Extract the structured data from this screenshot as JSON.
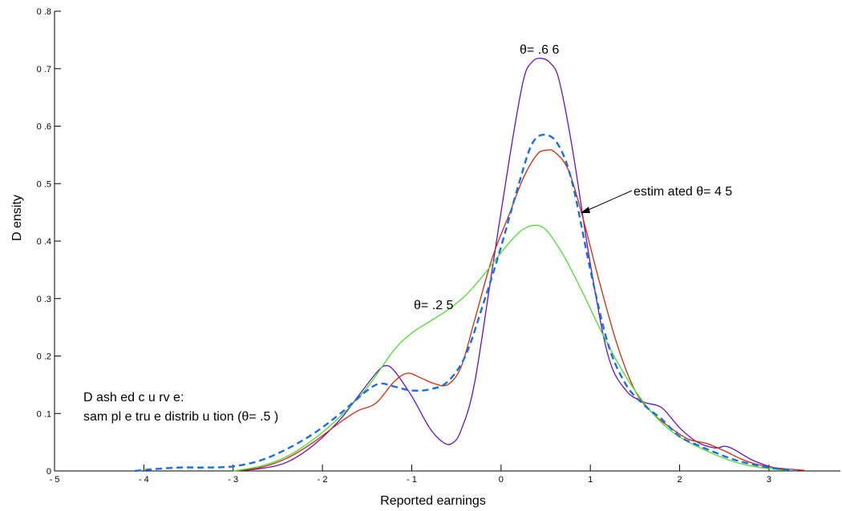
{
  "chart_data": {
    "type": "line",
    "title": "",
    "xlabel": "Reported earnings",
    "ylabel": "D ensity",
    "xlim": [
      -5,
      3.8
    ],
    "ylim": [
      0,
      0.8
    ],
    "grid": false,
    "x_ticks": [
      -5,
      -4,
      -3,
      -2,
      -1,
      0,
      1,
      2,
      3
    ],
    "x_tick_labels": [
      "- 5",
      "- 4",
      "- 3",
      "- 2",
      "- 1",
      "0",
      "1",
      "2",
      "3"
    ],
    "y_ticks": [
      0,
      0.1,
      0.2,
      0.3,
      0.4,
      0.5,
      0.6,
      0.7,
      0.8
    ],
    "y_tick_labels": [
      "0",
      "0 .1",
      "0 .2",
      "0 .3",
      "0 .4",
      "0 .5",
      "0 .6",
      "0 .7",
      "0 .8"
    ],
    "series": [
      {
        "color": "#1a6fe0",
        "dash": true,
        "x": [
          -4.1,
          -3.9,
          -3.6,
          -3.3,
          -3.0,
          -2.7,
          -2.4,
          -2.1,
          -1.8,
          -1.5,
          -1.35,
          -1.2,
          -1.0,
          -0.8,
          -0.6,
          -0.4,
          -0.2,
          0.0,
          0.2,
          0.35,
          0.5,
          0.65,
          0.8,
          1.0,
          1.2,
          1.4,
          1.6,
          1.8,
          2.0,
          2.2,
          2.4,
          2.6,
          2.8,
          3.0,
          3.3
        ],
        "y": [
          0.0,
          0.003,
          0.006,
          0.006,
          0.008,
          0.018,
          0.038,
          0.065,
          0.1,
          0.14,
          0.152,
          0.147,
          0.14,
          0.142,
          0.155,
          0.2,
          0.29,
          0.39,
          0.5,
          0.57,
          0.585,
          0.565,
          0.5,
          0.35,
          0.22,
          0.15,
          0.115,
          0.09,
          0.06,
          0.045,
          0.032,
          0.02,
          0.012,
          0.006,
          0.001
        ]
      },
      {
        "color": "#6a0dc8",
        "dash": false,
        "x": [
          -3.0,
          -2.7,
          -2.4,
          -2.1,
          -1.8,
          -1.6,
          -1.4,
          -1.3,
          -1.2,
          -1.0,
          -0.8,
          -0.65,
          -0.55,
          -0.45,
          -0.3,
          -0.1,
          0.1,
          0.25,
          0.35,
          0.45,
          0.55,
          0.65,
          0.8,
          1.0,
          1.2,
          1.4,
          1.6,
          1.8,
          2.0,
          2.2,
          2.4,
          2.5,
          2.6,
          2.8,
          3.0,
          3.2
        ],
        "y": [
          0.0,
          0.004,
          0.015,
          0.045,
          0.09,
          0.13,
          0.17,
          0.183,
          0.175,
          0.13,
          0.075,
          0.05,
          0.048,
          0.07,
          0.15,
          0.35,
          0.55,
          0.68,
          0.712,
          0.718,
          0.71,
          0.68,
          0.56,
          0.36,
          0.2,
          0.14,
          0.12,
          0.11,
          0.075,
          0.05,
          0.04,
          0.043,
          0.038,
          0.02,
          0.008,
          0.001
        ]
      },
      {
        "color": "#d42a0a",
        "dash": false,
        "x": [
          -3.0,
          -2.7,
          -2.4,
          -2.1,
          -1.8,
          -1.6,
          -1.4,
          -1.2,
          -1.05,
          -0.9,
          -0.75,
          -0.6,
          -0.45,
          -0.3,
          -0.1,
          0.1,
          0.25,
          0.4,
          0.5,
          0.6,
          0.75,
          0.9,
          1.1,
          1.3,
          1.5,
          1.7,
          1.9,
          2.1,
          2.3,
          2.5,
          2.7,
          2.9,
          3.1,
          3.4
        ],
        "y": [
          0.0,
          0.006,
          0.022,
          0.05,
          0.085,
          0.105,
          0.118,
          0.155,
          0.17,
          0.162,
          0.152,
          0.15,
          0.18,
          0.26,
          0.37,
          0.45,
          0.51,
          0.55,
          0.558,
          0.555,
          0.525,
          0.45,
          0.33,
          0.22,
          0.14,
          0.1,
          0.075,
          0.055,
          0.048,
          0.035,
          0.02,
          0.01,
          0.005,
          0.001
        ]
      },
      {
        "color": "#46e02a",
        "dash": false,
        "x": [
          -3.0,
          -2.7,
          -2.4,
          -2.1,
          -1.8,
          -1.5,
          -1.2,
          -1.0,
          -0.8,
          -0.6,
          -0.4,
          -0.2,
          0.0,
          0.2,
          0.35,
          0.5,
          0.7,
          0.9,
          1.1,
          1.3,
          1.5,
          1.7,
          1.9,
          2.1,
          2.3,
          2.5,
          2.7,
          2.9,
          3.2
        ],
        "y": [
          0.0,
          0.008,
          0.025,
          0.055,
          0.095,
          0.145,
          0.21,
          0.24,
          0.26,
          0.28,
          0.305,
          0.34,
          0.38,
          0.415,
          0.427,
          0.42,
          0.375,
          0.315,
          0.25,
          0.19,
          0.14,
          0.1,
          0.07,
          0.05,
          0.035,
          0.022,
          0.012,
          0.006,
          0.001
        ]
      }
    ],
    "annotations": {
      "theta_66": "θ= .6 6",
      "theta_25": "θ= .2 5",
      "estimated": "estim ated θ= 4 5",
      "dashed_line1": "D ash ed c u rv e:",
      "dashed_line2": "sam pl e tru e distrib u tion (θ= .5 )"
    }
  }
}
